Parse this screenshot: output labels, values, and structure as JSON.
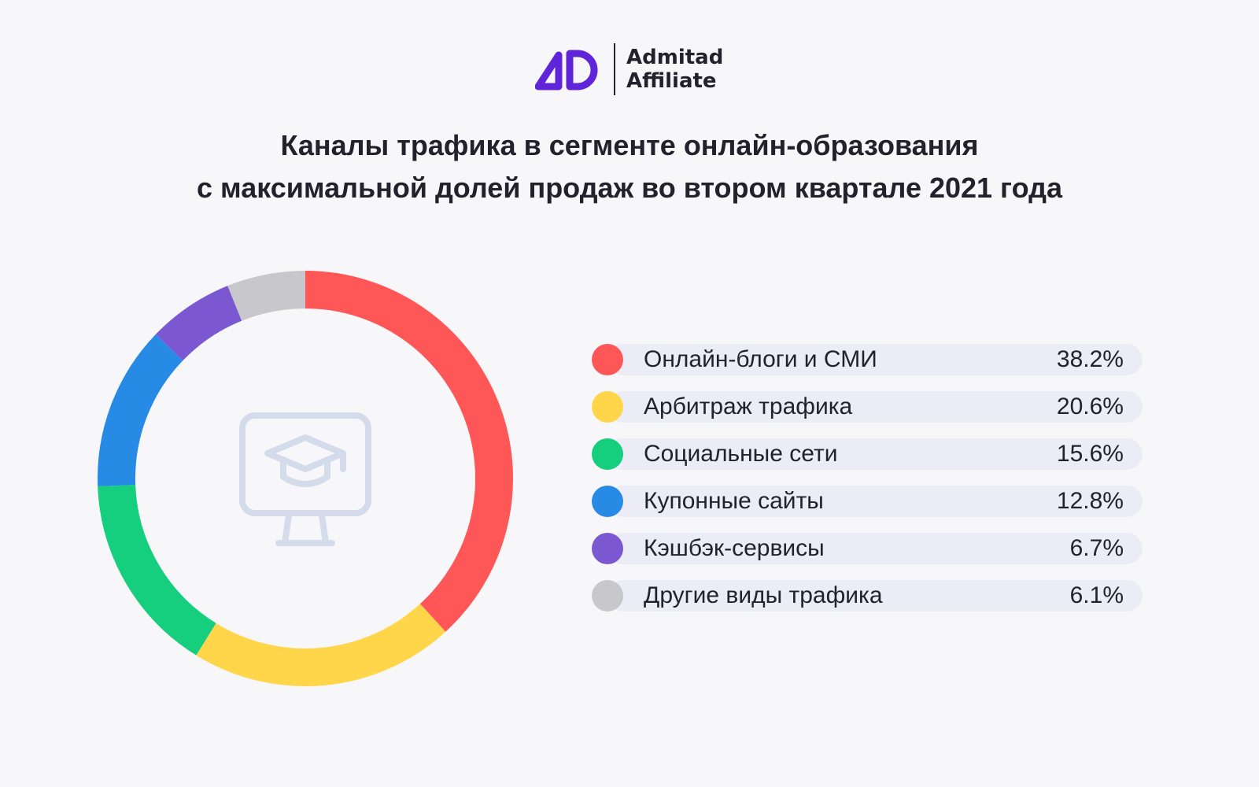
{
  "brand": {
    "line1": "Admitad",
    "line2": "Affiliate",
    "color": "#6025d9"
  },
  "title": {
    "line1": "Каналы трафика в сегменте онлайн-образования",
    "line2": "с максимальной долей продаж во втором квартале 2021 года"
  },
  "center_icon": "graduation-cap-monitor-icon",
  "chart_data": {
    "type": "pie",
    "variant": "donut",
    "title": "Каналы трафика в сегменте онлайн-образования с максимальной долей продаж во втором квартале 2021 года",
    "categories": [
      "Онлайн-блоги и СМИ",
      "Арбитраж трафика",
      "Социальные сети",
      "Купонные сайты",
      "Кэшбэк-сервисы",
      "Другие виды трафика"
    ],
    "values": [
      38.2,
      20.6,
      15.6,
      12.8,
      6.7,
      6.1
    ],
    "value_labels": [
      "38.2%",
      "20.6%",
      "15.6%",
      "12.8%",
      "6.7%",
      "6.1%"
    ],
    "colors": [
      "#ff5757",
      "#ffd54a",
      "#15cf7e",
      "#278be6",
      "#7b57d1",
      "#c8c8cc"
    ],
    "unit": "%",
    "legend_position": "right"
  }
}
